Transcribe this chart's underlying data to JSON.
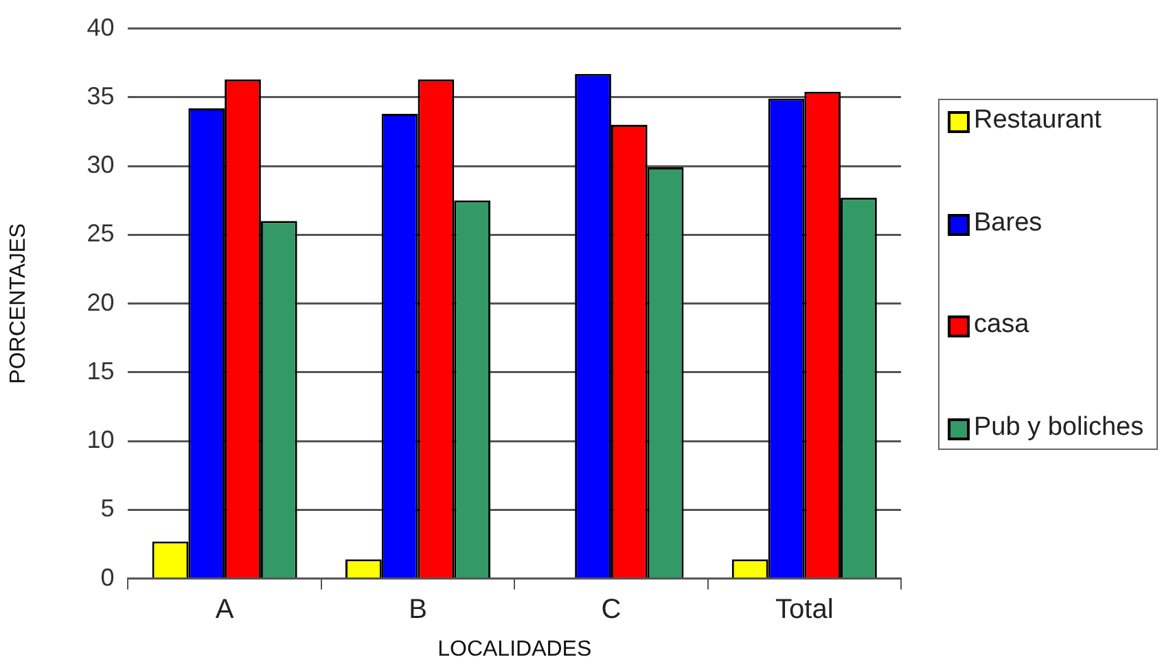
{
  "chart_data": {
    "type": "bar",
    "xlabel": "LOCALIDADES",
    "ylabel": "PORCENTAJES",
    "categories": [
      "A",
      "B",
      "C",
      "Total"
    ],
    "series": [
      {
        "name": "Restaurant",
        "color": "#ffff00",
        "values": [
          2.7,
          1.4,
          0,
          1.4
        ]
      },
      {
        "name": "Bares",
        "color": "#0000ff",
        "values": [
          34.2,
          33.8,
          36.7,
          34.9
        ]
      },
      {
        "name": "casa",
        "color": "#ff0000",
        "values": [
          36.3,
          36.3,
          33.0,
          35.4
        ]
      },
      {
        "name": "Pub y boliches",
        "color": "#339966",
        "values": [
          26.0,
          27.5,
          29.9,
          27.7
        ]
      }
    ],
    "ylim": [
      0,
      40
    ],
    "yticks": [
      0,
      5,
      10,
      15,
      20,
      25,
      30,
      35,
      40
    ],
    "grid": "y",
    "legend": "right"
  }
}
